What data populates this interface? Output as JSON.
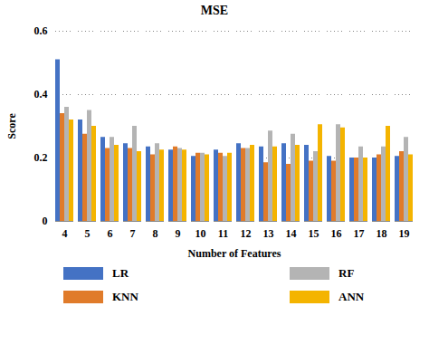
{
  "chart_data": {
    "type": "bar",
    "title": "MSE",
    "x_label": "Number of Features",
    "y_label": "Score",
    "categories": [
      "4",
      "5",
      "6",
      "7",
      "8",
      "9",
      "10",
      "11",
      "12",
      "13",
      "14",
      "15",
      "16",
      "17",
      "18",
      "19"
    ],
    "series": [
      {
        "name": "LR",
        "color": "#4472c4",
        "values": [
          0.51,
          0.32,
          0.265,
          0.245,
          0.235,
          0.225,
          0.205,
          0.225,
          0.245,
          0.235,
          0.245,
          0.24,
          0.205,
          0.2,
          0.2,
          0.205
        ]
      },
      {
        "name": "KNN",
        "color": "#e07b2a",
        "values": [
          0.34,
          0.275,
          0.23,
          0.23,
          0.21,
          0.235,
          0.215,
          0.215,
          0.23,
          0.185,
          0.18,
          0.19,
          0.19,
          0.2,
          0.21,
          0.22
        ]
      },
      {
        "name": "RF",
        "color": "#b4b4b4",
        "values": [
          0.36,
          0.35,
          0.265,
          0.3,
          0.245,
          0.23,
          0.215,
          0.205,
          0.23,
          0.285,
          0.275,
          0.22,
          0.305,
          0.235,
          0.235,
          0.265
        ]
      },
      {
        "name": "ANN",
        "color": "#f4b400",
        "values": [
          0.32,
          0.3,
          0.24,
          0.22,
          0.225,
          0.225,
          0.21,
          0.215,
          0.24,
          0.235,
          0.24,
          0.305,
          0.295,
          0.2,
          0.3,
          0.21
        ]
      }
    ],
    "ylim": [
      0,
      0.6
    ],
    "yticks": [
      0,
      0.2,
      0.4,
      0.6
    ],
    "grid": true,
    "legend": "bottom"
  }
}
